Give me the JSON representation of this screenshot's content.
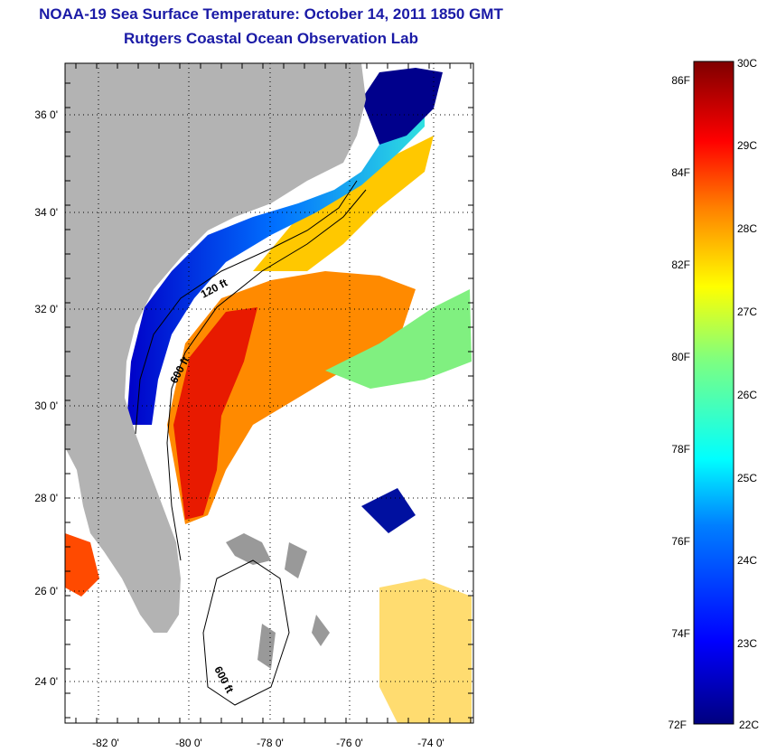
{
  "header": {
    "title": "NOAA-19 Sea Surface Temperature:  October 14, 2011 1850 GMT",
    "subtitle": "Rutgers Coastal Ocean Observation Lab"
  },
  "map": {
    "lat_labels": [
      "36 0'",
      "34 0'",
      "32 0'",
      "30 0'",
      "28 0'",
      "26 0'",
      "24 0'"
    ],
    "lon_labels": [
      "-82 0'",
      "-80 0'",
      "-78 0'",
      "-76 0'",
      "-74 0'"
    ],
    "lat_range": [
      23,
      37
    ],
    "lon_range": [
      -83,
      -73
    ],
    "contour_labels": [
      "120 ft",
      "600 ft",
      "600 ft"
    ],
    "colors": {
      "land": "#b3b3b3",
      "no_data": "#ffffff"
    }
  },
  "colorbar": {
    "celsius_labels": [
      "30C",
      "29C",
      "28C",
      "27C",
      "26C",
      "25C",
      "24C",
      "23C",
      "22C"
    ],
    "fahrenheit_labels": [
      "86F",
      "84F",
      "82F",
      "80F",
      "78F",
      "76F",
      "74F",
      "72F"
    ],
    "range_c": [
      22,
      30
    ],
    "colors": [
      "#00007f",
      "#0000ff",
      "#007fff",
      "#00ffff",
      "#7fff7f",
      "#ffff00",
      "#ff7f00",
      "#ff0000",
      "#7f0000"
    ]
  }
}
